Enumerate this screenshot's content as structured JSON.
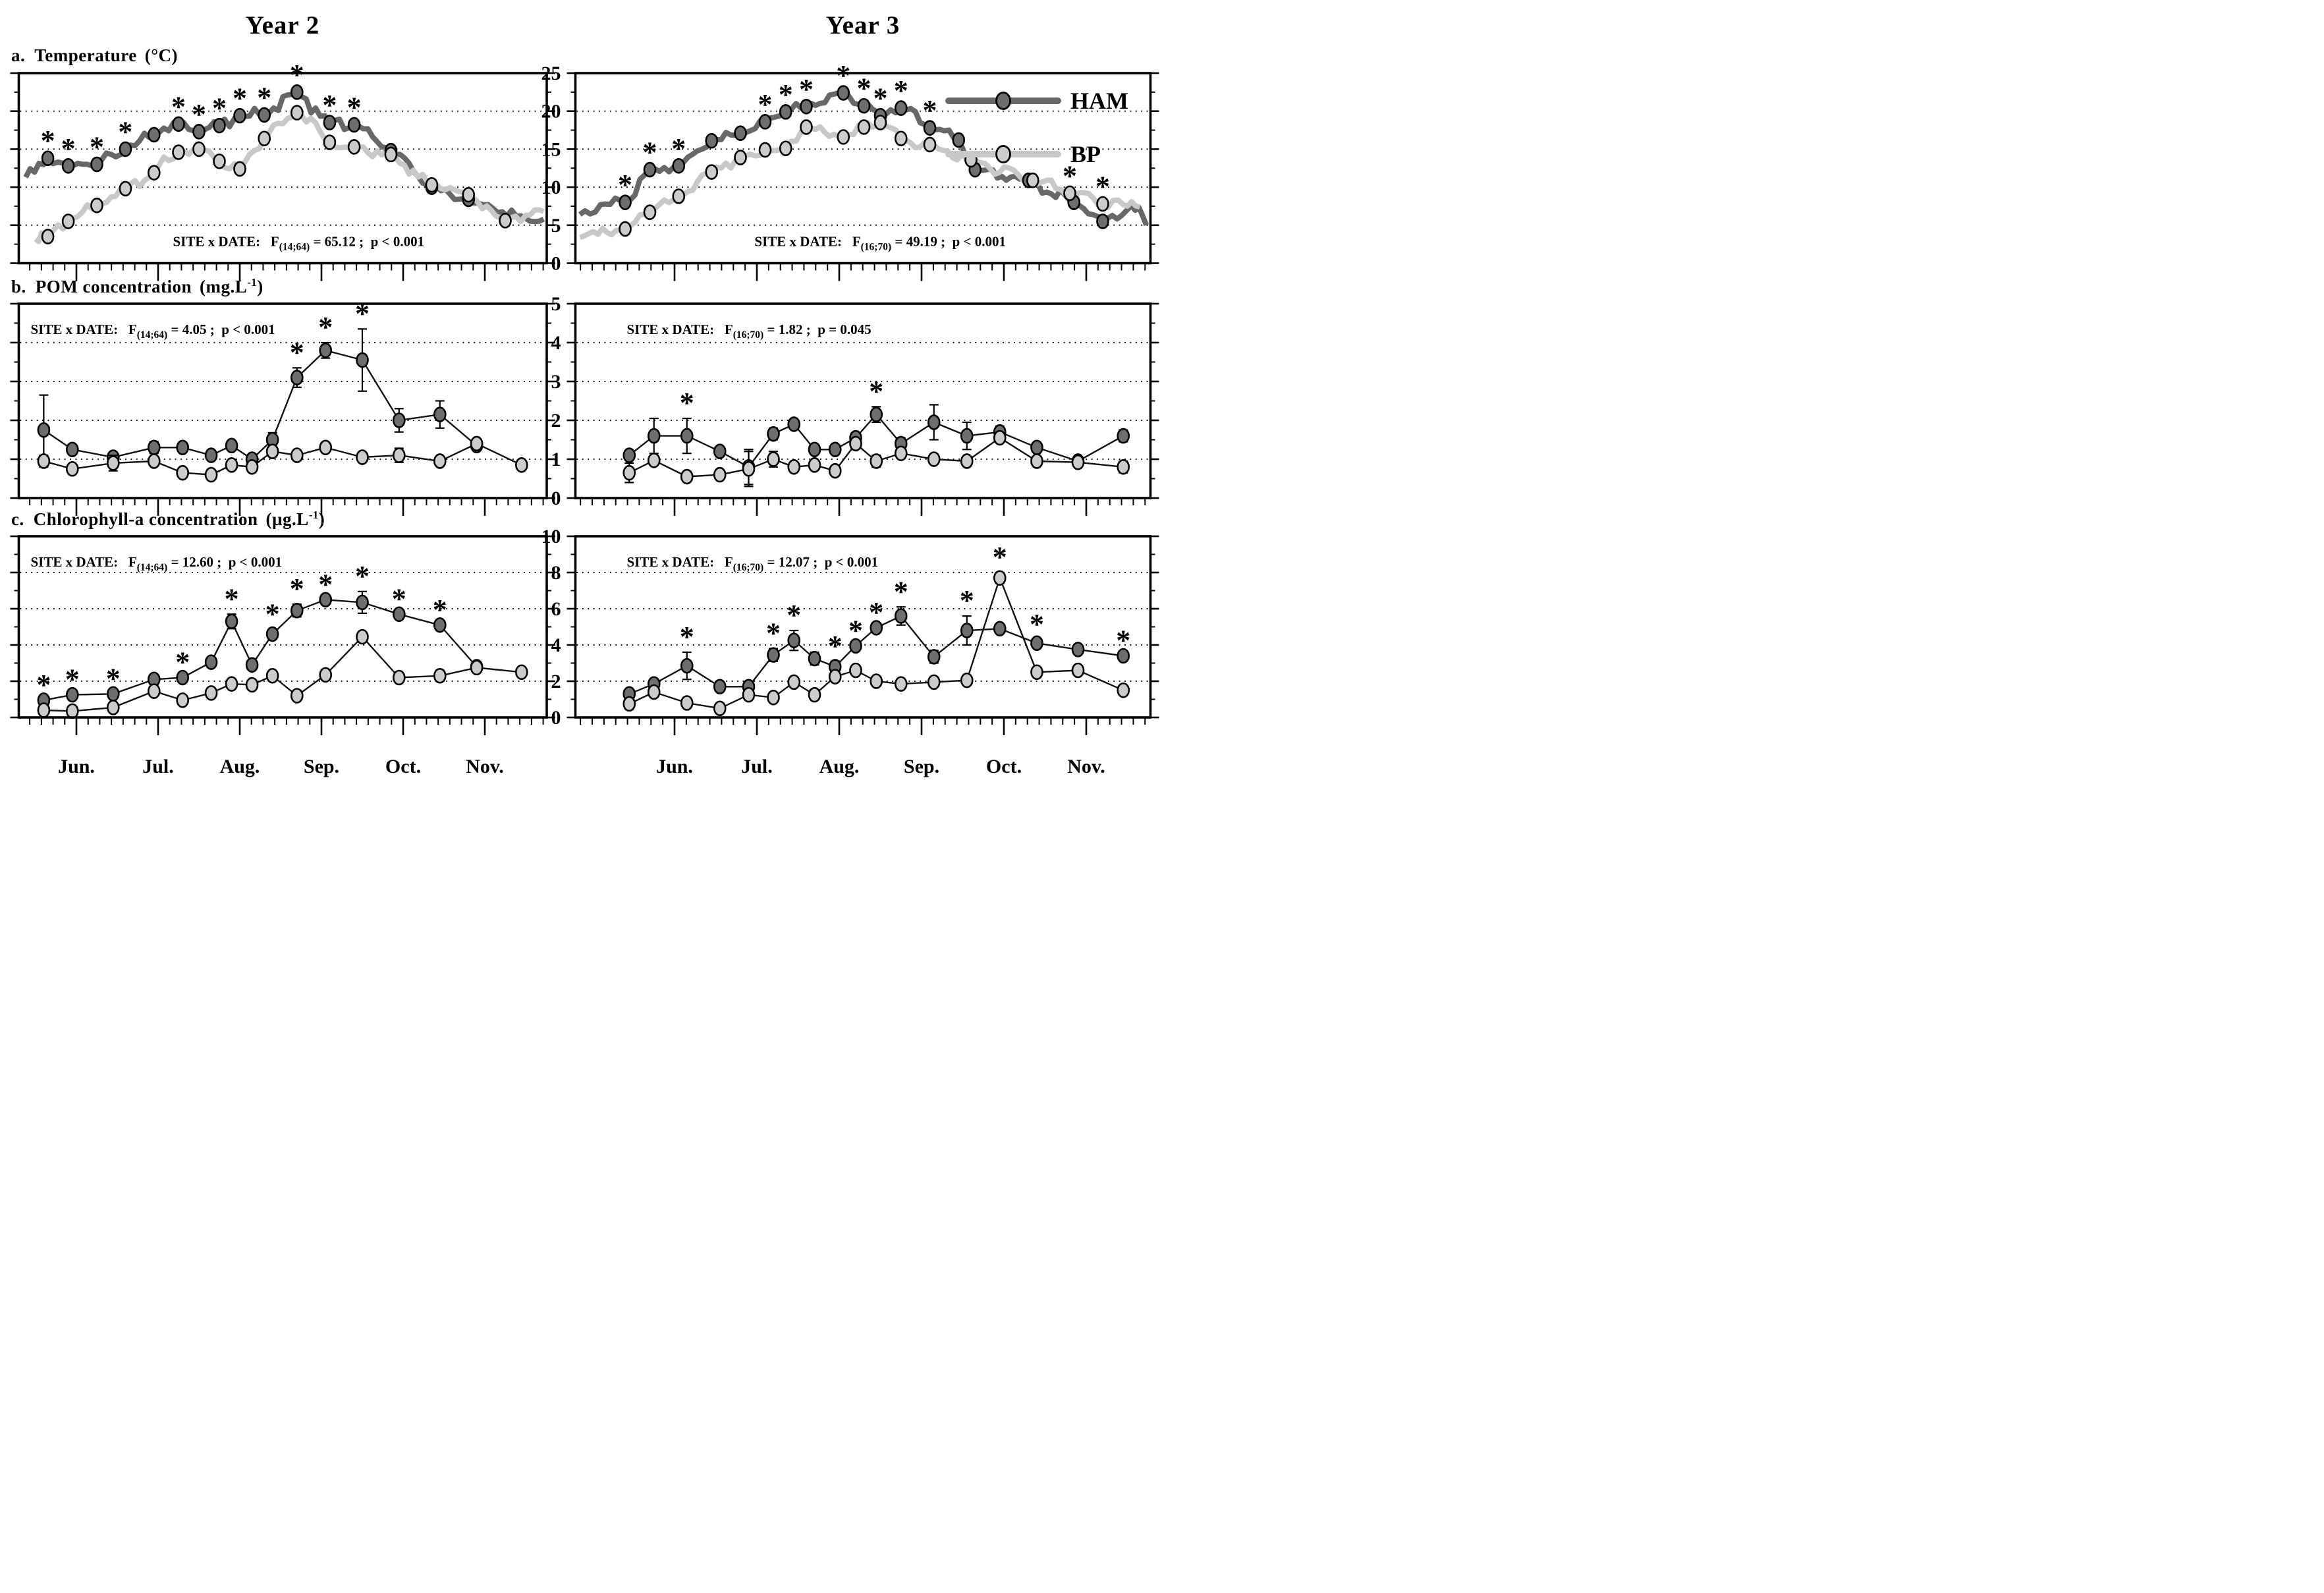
{
  "columns": [
    {
      "id": "year2",
      "title": "Year 2",
      "months": [
        "Jun.",
        "Jul.",
        "Aug.",
        "Sep.",
        "Oct.",
        "Nov."
      ]
    },
    {
      "id": "year3",
      "title": "Year 3",
      "months": [
        "Jun.",
        "Jul.",
        "Aug.",
        "Sep.",
        "Oct.",
        "Nov."
      ]
    }
  ],
  "rows": [
    {
      "id": "temperature",
      "label_prefix": "a.",
      "label_name": "Temperature",
      "unit_pre": "(°C",
      "unit_sup": "",
      "unit_post": ")",
      "ymin": 0,
      "ymax": 25,
      "yticks": [
        0,
        5,
        10,
        15,
        20,
        25
      ],
      "grid": [
        5,
        10,
        15,
        20
      ],
      "show_ylabels_col": 1
    },
    {
      "id": "pom",
      "label_prefix": "b.",
      "label_name": "POM  concentration",
      "unit_pre": "(mg.L",
      "unit_sup": "-1",
      "unit_post": ")",
      "ymin": 0,
      "ymax": 5,
      "yticks": [
        0,
        1,
        2,
        3,
        4,
        5
      ],
      "grid": [
        1,
        2,
        3,
        4
      ],
      "show_ylabels_col": 1
    },
    {
      "id": "chla",
      "label_prefix": "c.",
      "label_name": "Chlorophyll-a  concentration",
      "unit_pre": "(µg.L",
      "unit_sup": "-1",
      "unit_post": ")",
      "ymin": 0,
      "ymax": 10,
      "yticks": [
        0,
        2,
        4,
        6,
        8,
        10
      ],
      "grid": [
        2,
        4,
        6,
        8
      ],
      "show_ylabels_col": 1
    }
  ],
  "legend": {
    "entries": [
      {
        "name": "HAM",
        "label": "HAM"
      },
      {
        "name": "BP",
        "label": "BP"
      }
    ]
  },
  "series_styles": {
    "HAM": {
      "line": "#686868",
      "marker": "#6e6e6e",
      "outline": "#000000"
    },
    "BP": {
      "line": "#c8c8c8",
      "marker": "#cccccc",
      "outline": "#000000"
    },
    "connector": "#111111"
  },
  "chart_data": [
    {
      "panel": "temperature-year2",
      "row": 0,
      "col": 0,
      "type": "line",
      "stats": {
        "prefix": "SITE x DATE:",
        "f": "F",
        "df": "(14;64)",
        "value": "= 65.12 ;",
        "p": "p < 0.001"
      },
      "series": [
        {
          "name": "HAM",
          "style": "trace",
          "x": [
            -0.35,
            -0.1,
            0.25,
            0.6,
            0.95,
            1.25,
            1.5,
            1.75,
            2.0,
            2.3,
            2.7,
            3.1,
            3.4,
            3.85,
            4.35,
            4.8
          ],
          "y": [
            13.8,
            12.8,
            13.0,
            15.0,
            16.9,
            18.3,
            17.3,
            18.1,
            19.4,
            19.5,
            22.5,
            18.5,
            18.2,
            14.8,
            10.0,
            8.4
          ],
          "sig": [
            1,
            1,
            1,
            1,
            0,
            1,
            1,
            1,
            1,
            1,
            1,
            1,
            1,
            0,
            0,
            0
          ],
          "ext_pre": [
            [
              -0.62,
              11.3
            ]
          ],
          "ext_post": [
            [
              5.1,
              7.2
            ],
            [
              5.5,
              5.9
            ],
            [
              5.72,
              5.8
            ]
          ]
        },
        {
          "name": "BP",
          "style": "trace",
          "x": [
            -0.35,
            -0.1,
            0.25,
            0.6,
            0.95,
            1.25,
            1.5,
            1.75,
            2.0,
            2.3,
            2.7,
            3.1,
            3.4,
            3.85,
            4.35,
            4.8,
            5.25
          ],
          "y": [
            3.5,
            5.5,
            7.6,
            9.8,
            11.9,
            14.6,
            15.0,
            13.4,
            12.4,
            16.4,
            19.8,
            15.9,
            15.3,
            14.3,
            10.3,
            9.0,
            5.6
          ],
          "ext_pre": [
            [
              -0.5,
              3.2
            ]
          ],
          "ext_post": [
            [
              5.5,
              6.3
            ],
            [
              5.72,
              6.8
            ]
          ]
        }
      ]
    },
    {
      "panel": "temperature-year3",
      "row": 0,
      "col": 1,
      "type": "line",
      "has_legend": true,
      "stats": {
        "prefix": "SITE x DATE:",
        "f": "F",
        "df": "(16;70)",
        "value": "= 49.19 ;",
        "p": "p < 0.001"
      },
      "series": [
        {
          "name": "HAM",
          "style": "trace",
          "x": [
            -0.6,
            -0.3,
            0.05,
            0.45,
            0.8,
            1.1,
            1.35,
            1.6,
            2.05,
            2.3,
            2.5,
            2.75,
            3.1,
            3.45,
            3.65,
            4.3,
            4.85,
            5.2
          ],
          "y": [
            8.0,
            12.3,
            12.8,
            16.1,
            17.1,
            18.6,
            19.9,
            20.6,
            22.4,
            20.7,
            19.4,
            20.4,
            17.8,
            16.2,
            12.3,
            10.9,
            8.0,
            5.5
          ],
          "sig": [
            1,
            1,
            1,
            0,
            0,
            1,
            1,
            1,
            1,
            1,
            1,
            1,
            1,
            0,
            0,
            0,
            0,
            0
          ],
          "ext_pre": [
            [
              -1.15,
              6.4
            ],
            [
              -0.9,
              7.7
            ]
          ],
          "ext_post": [
            [
              5.55,
              7.6
            ],
            [
              5.73,
              5.0
            ]
          ]
        },
        {
          "name": "BP",
          "style": "trace",
          "x": [
            -0.6,
            -0.3,
            0.05,
            0.45,
            0.8,
            1.1,
            1.35,
            1.6,
            2.05,
            2.3,
            2.5,
            2.75,
            3.1,
            3.6,
            4.35,
            4.8,
            5.2
          ],
          "y": [
            4.5,
            6.7,
            8.8,
            12.0,
            13.9,
            14.9,
            15.1,
            17.9,
            16.6,
            17.9,
            18.5,
            16.4,
            15.6,
            13.6,
            10.9,
            9.2,
            7.8
          ],
          "sig": [
            0,
            0,
            0,
            0,
            0,
            0,
            0,
            0,
            0,
            0,
            0,
            0,
            0,
            0,
            0,
            1,
            1
          ],
          "ext_pre": [
            [
              -1.15,
              3.4
            ]
          ],
          "ext_post": [
            [
              5.45,
              7.7
            ],
            [
              5.65,
              7.4
            ]
          ]
        }
      ]
    },
    {
      "panel": "pom-year2",
      "row": 1,
      "col": 0,
      "type": "line",
      "stats": {
        "prefix": "SITE x DATE:",
        "f": "F",
        "df": "(14;64)",
        "value": "= 4.05 ;",
        "p": "p < 0.001"
      },
      "series": [
        {
          "name": "HAM",
          "style": "markers",
          "x": [
            -0.4,
            -0.05,
            0.45,
            0.95,
            1.3,
            1.65,
            1.9,
            2.15,
            2.4,
            2.7,
            3.05,
            3.5,
            3.95,
            4.45,
            4.9
          ],
          "y": [
            1.75,
            1.25,
            1.05,
            1.3,
            1.3,
            1.1,
            1.35,
            1.0,
            1.5,
            3.1,
            3.8,
            3.55,
            2.0,
            2.15,
            1.35
          ],
          "err": [
            0.9,
            0.12,
            0,
            0.15,
            0,
            0,
            0.12,
            0,
            0.18,
            0.25,
            0.2,
            0.8,
            0.3,
            0.35,
            0
          ],
          "sig": [
            0,
            0,
            0,
            0,
            0,
            0,
            0,
            0,
            0,
            1,
            1,
            1,
            0,
            0,
            0
          ]
        },
        {
          "name": "BP",
          "style": "markers",
          "x": [
            -0.4,
            -0.05,
            0.45,
            0.95,
            1.3,
            1.65,
            1.9,
            2.15,
            2.4,
            2.7,
            3.05,
            3.5,
            3.95,
            4.45,
            4.9,
            5.45
          ],
          "y": [
            0.95,
            0.75,
            0.9,
            0.95,
            0.65,
            0.6,
            0.85,
            0.8,
            1.2,
            1.1,
            1.3,
            1.05,
            1.1,
            0.95,
            1.4,
            0.85
          ],
          "err": [
            0.15,
            0,
            0.2,
            0,
            0,
            0,
            0,
            0,
            0,
            0,
            0,
            0,
            0.18,
            0,
            0,
            0.1
          ]
        }
      ]
    },
    {
      "panel": "pom-year3",
      "row": 1,
      "col": 1,
      "type": "line",
      "stats": {
        "prefix": "SITE x DATE:",
        "f": "F",
        "df": "(16;70)",
        "value": "= 1.82 ;",
        "p": "p = 0.045"
      },
      "series": [
        {
          "name": "HAM",
          "style": "markers",
          "x": [
            -0.55,
            -0.25,
            0.15,
            0.55,
            0.9,
            1.2,
            1.45,
            1.7,
            1.95,
            2.2,
            2.45,
            2.75,
            3.15,
            3.55,
            3.95,
            4.4,
            4.9,
            5.45
          ],
          "y": [
            1.1,
            1.6,
            1.6,
            1.2,
            0.8,
            1.65,
            1.9,
            1.25,
            1.25,
            1.55,
            2.15,
            1.4,
            1.95,
            1.6,
            1.7,
            1.3,
            0.95,
            1.6
          ],
          "err": [
            0,
            0.45,
            0.45,
            0,
            0.45,
            0.15,
            0,
            0,
            0,
            0,
            0.2,
            0.15,
            0.45,
            0.35,
            0.15,
            0.1,
            0,
            0.15
          ],
          "sig": [
            0,
            0,
            1,
            0,
            0,
            0,
            0,
            0,
            0,
            0,
            1,
            0,
            0,
            0,
            0,
            0,
            0,
            0
          ]
        },
        {
          "name": "BP",
          "style": "markers",
          "x": [
            -0.55,
            -0.25,
            0.15,
            0.55,
            0.9,
            1.2,
            1.45,
            1.7,
            1.95,
            2.2,
            2.45,
            2.75,
            3.15,
            3.55,
            3.95,
            4.4,
            4.9,
            5.45
          ],
          "y": [
            0.65,
            0.97,
            0.55,
            0.6,
            0.75,
            1.0,
            0.8,
            0.85,
            0.7,
            1.4,
            0.95,
            1.15,
            1.0,
            0.95,
            1.55,
            0.95,
            0.92,
            0.8
          ],
          "err": [
            0.25,
            0,
            0,
            0,
            0.45,
            0.2,
            0,
            0,
            0,
            0,
            0.15,
            0,
            0,
            0,
            0,
            0,
            0,
            0.15
          ]
        }
      ]
    },
    {
      "panel": "chla-year2",
      "row": 2,
      "col": 0,
      "type": "line",
      "stats": {
        "prefix": "SITE x DATE:",
        "f": "F",
        "df": "(14;64)",
        "value": "= 12.60 ;",
        "p": "p < 0.001"
      },
      "series": [
        {
          "name": "HAM",
          "style": "markers",
          "x": [
            -0.4,
            -0.05,
            0.45,
            0.95,
            1.3,
            1.65,
            1.9,
            2.15,
            2.4,
            2.7,
            3.05,
            3.5,
            3.95,
            4.45,
            4.9
          ],
          "y": [
            0.95,
            1.25,
            1.3,
            2.1,
            2.2,
            3.05,
            5.3,
            2.9,
            4.6,
            5.9,
            6.5,
            6.35,
            5.7,
            5.1,
            2.8
          ],
          "err": [
            0,
            0,
            0,
            0,
            0,
            0,
            0.4,
            0,
            0.25,
            0.35,
            0,
            0.6,
            0,
            0,
            0
          ],
          "sig": [
            1,
            1,
            1,
            0,
            1,
            0,
            1,
            0,
            1,
            1,
            1,
            1,
            1,
            1,
            0
          ]
        },
        {
          "name": "BP",
          "style": "markers",
          "x": [
            -0.4,
            -0.05,
            0.45,
            0.95,
            1.3,
            1.65,
            1.9,
            2.15,
            2.4,
            2.7,
            3.05,
            3.5,
            3.95,
            4.45,
            4.9,
            5.45
          ],
          "y": [
            0.4,
            0.35,
            0.55,
            1.45,
            0.95,
            1.35,
            1.85,
            1.8,
            2.3,
            1.2,
            2.35,
            4.45,
            2.2,
            2.3,
            2.75,
            2.5
          ],
          "err": [
            0,
            0,
            0,
            0,
            0,
            0,
            0,
            0,
            0,
            0,
            0,
            0.2,
            0,
            0.3,
            0,
            0
          ]
        }
      ]
    },
    {
      "panel": "chla-year3",
      "row": 2,
      "col": 1,
      "type": "line",
      "stats": {
        "prefix": "SITE x DATE:",
        "f": "F",
        "df": "(16;70)",
        "value": "= 12.07 ;",
        "p": "p < 0.001"
      },
      "series": [
        {
          "name": "HAM",
          "style": "markers",
          "x": [
            -0.55,
            -0.25,
            0.15,
            0.55,
            0.9,
            1.2,
            1.45,
            1.7,
            1.95,
            2.2,
            2.45,
            2.75,
            3.15,
            3.55,
            3.95,
            4.4,
            4.9,
            5.45
          ],
          "y": [
            1.3,
            1.85,
            2.85,
            1.7,
            1.7,
            3.45,
            4.25,
            3.25,
            2.8,
            3.95,
            4.95,
            5.6,
            3.35,
            4.8,
            4.9,
            4.1,
            3.75,
            3.4
          ],
          "err": [
            0,
            0,
            0.75,
            0,
            0,
            0.35,
            0.55,
            0.35,
            0.3,
            0,
            0,
            0.5,
            0.35,
            0.8,
            0,
            0.2,
            0,
            0
          ],
          "sig": [
            0,
            0,
            1,
            0,
            0,
            1,
            1,
            0,
            1,
            1,
            1,
            1,
            0,
            1,
            0,
            1,
            0,
            1
          ]
        },
        {
          "name": "BP",
          "style": "markers",
          "x": [
            -0.55,
            -0.25,
            0.15,
            0.55,
            0.9,
            1.2,
            1.45,
            1.7,
            1.95,
            2.2,
            2.45,
            2.75,
            3.15,
            3.55,
            3.95,
            4.4,
            4.9,
            5.45
          ],
          "y": [
            0.75,
            1.4,
            0.8,
            0.5,
            1.25,
            1.1,
            1.95,
            1.25,
            2.25,
            2.6,
            2.0,
            1.85,
            1.95,
            2.05,
            7.7,
            2.5,
            2.6,
            1.5
          ],
          "err": [
            0.3,
            0,
            0,
            0,
            0,
            0,
            0,
            0,
            0,
            0,
            0,
            0,
            0,
            0,
            0.3,
            0,
            0,
            0.15
          ],
          "sig": [
            0,
            0,
            0,
            0,
            0,
            0,
            0,
            0,
            0,
            0,
            0,
            0,
            0,
            0,
            1,
            0,
            0,
            0
          ]
        }
      ]
    }
  ]
}
